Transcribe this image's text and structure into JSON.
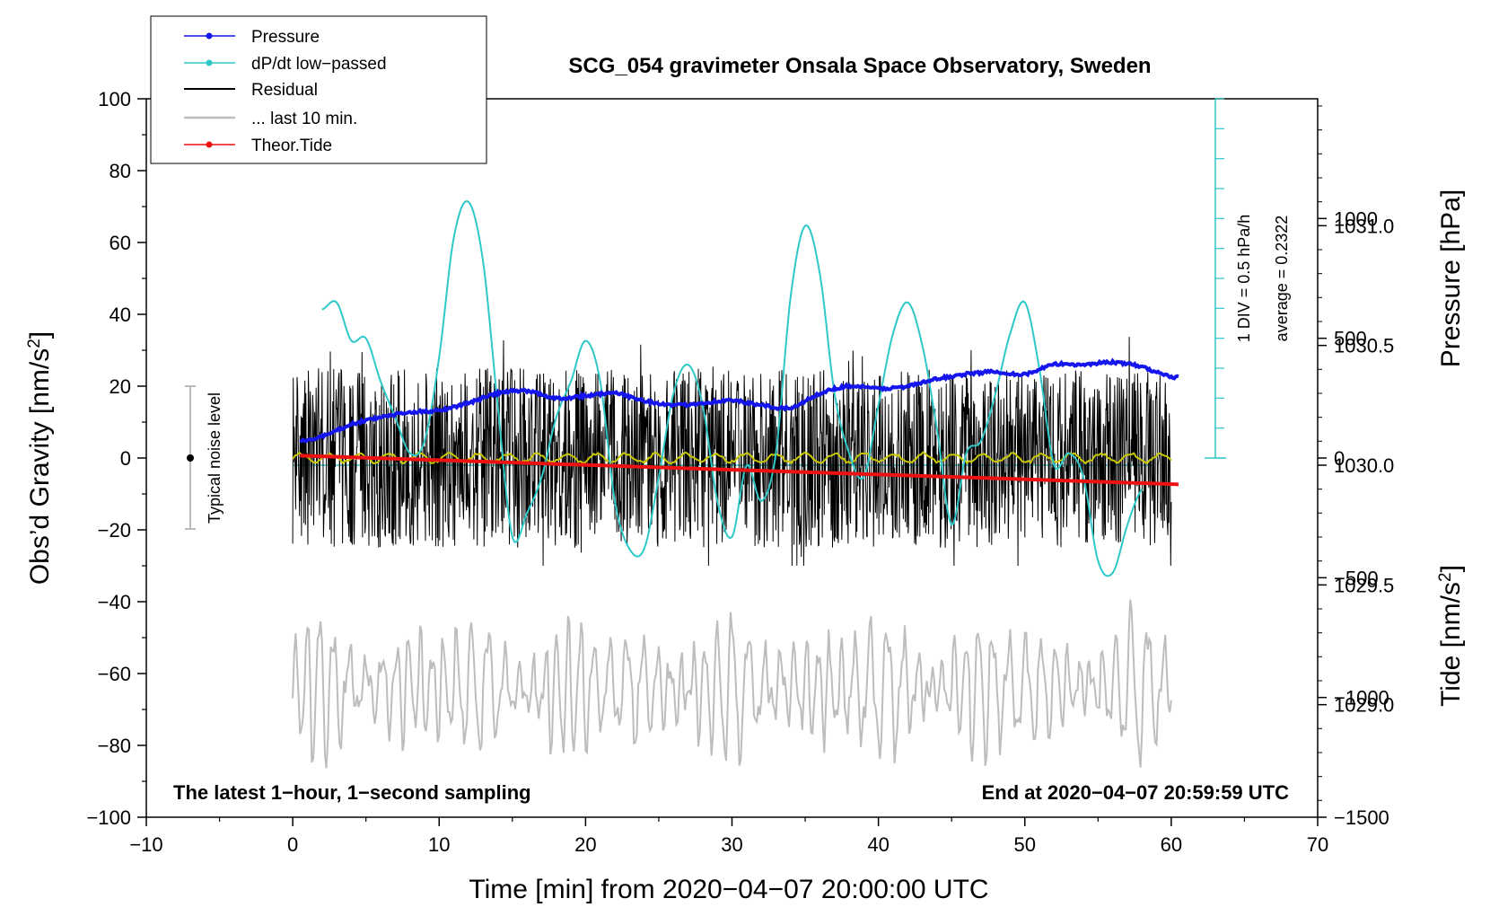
{
  "chart_data": {
    "type": "line",
    "title": "SCG_054 gravimeter Onsala Space Observatory, Sweden",
    "xlabel": "Time [min] from 2020−04−07 20:00:00 UTC",
    "ylabel_left_main": "Obs’d Gravity [nm/s",
    "ylabel_left_sup": "2",
    "ylabel_left_end": "]",
    "ylabel_right_pressure": "Pressure [hPa]",
    "ylabel_right_tide_main": "Tide [nm/s",
    "ylabel_right_tide_sup": "2",
    "ylabel_right_tide_end": "]",
    "xlim": [
      -10,
      70
    ],
    "ylim": [
      -100,
      100
    ],
    "pressure_lim": [
      1028.53,
      1031.53
    ],
    "tide_lim": [
      -1500,
      1500
    ],
    "x_ticks": [
      "−10",
      "0",
      "10",
      "20",
      "30",
      "40",
      "50",
      "60",
      "70"
    ],
    "x_tick_values": [
      -10,
      0,
      10,
      20,
      30,
      40,
      50,
      60,
      70
    ],
    "y_ticks": [
      "100",
      "80",
      "60",
      "40",
      "20",
      "0",
      "−20",
      "−40",
      "−60",
      "−80",
      "−100"
    ],
    "y_tick_values": [
      100,
      80,
      60,
      40,
      20,
      0,
      -20,
      -40,
      -60,
      -80,
      -100
    ],
    "pressure_ticks": [
      "1031.0",
      "1030.5",
      "1030.0",
      "1029.5",
      "1029.0"
    ],
    "pressure_tick_values": [
      1031.0,
      1030.5,
      1030.0,
      1029.5,
      1029.0
    ],
    "tide_ticks": [
      "1000",
      "500",
      "0",
      "−500",
      "−1000",
      "−1500"
    ],
    "tide_tick_values": [
      1000,
      500,
      0,
      -500,
      -1000,
      -1500
    ],
    "legend": {
      "position": "top-left",
      "entries": [
        {
          "label": "Pressure",
          "color": "#1515ee",
          "marker": true
        },
        {
          "label": "dP/dt low−passed",
          "color": "#2ec8c8",
          "marker": true
        },
        {
          "label": "Residual",
          "color": "#000000",
          "marker": false
        },
        {
          "label": "... last 10 min.",
          "color": "#bdbdbd",
          "marker": false
        },
        {
          "label": "Theor.Tide",
          "color": "#ee1111",
          "marker": true
        }
      ]
    },
    "annotations": {
      "left_note": "The latest 1−hour, 1−second sampling",
      "right_note": "End at 2020−04−07 20:59:59 UTC",
      "noise_label": "Typical noise level",
      "noise_range": [
        -20,
        20
      ],
      "div_label": "1 DIV = 0.5 hPa/h",
      "average_label": "average = 0.2322",
      "dpdt_baseline_pressure": 1030.0
    },
    "series": [
      {
        "name": "Pressure",
        "units": "hPa",
        "color": "#1515ee",
        "x": [
          0.5,
          2,
          4,
          6,
          8,
          10,
          12,
          14,
          16,
          18,
          20,
          22,
          24,
          26,
          28,
          30,
          32,
          34,
          36,
          38,
          40,
          42,
          44,
          46,
          48,
          50,
          52,
          54,
          56,
          58,
          60,
          60.5
        ],
        "values": [
          1030.1,
          1030.12,
          1030.17,
          1030.2,
          1030.22,
          1030.23,
          1030.26,
          1030.3,
          1030.31,
          1030.28,
          1030.29,
          1030.3,
          1030.27,
          1030.25,
          1030.26,
          1030.27,
          1030.25,
          1030.24,
          1030.3,
          1030.33,
          1030.32,
          1030.33,
          1030.36,
          1030.38,
          1030.39,
          1030.38,
          1030.42,
          1030.42,
          1030.43,
          1030.41,
          1030.37,
          1030.37
        ]
      },
      {
        "name": "dP/dt low−passed",
        "units": "hPa/h, 0.5 per DIV about baseline",
        "color": "#2ec8c8",
        "x": [
          2,
          3,
          4,
          5,
          6,
          7,
          8,
          9,
          10,
          11,
          12,
          13,
          14,
          15,
          16,
          17,
          18,
          19,
          20,
          21,
          22,
          23,
          24,
          25,
          26,
          27,
          28,
          29,
          30,
          31,
          32,
          33,
          34,
          35,
          36,
          37,
          38,
          39,
          40,
          41,
          42,
          43,
          44,
          45,
          46,
          47,
          48,
          49,
          50,
          51,
          52,
          53,
          54,
          55,
          56,
          57,
          58
        ],
        "values": [
          1030.65,
          1030.68,
          1030.52,
          1030.53,
          1030.35,
          1030.2,
          1030.05,
          1030.1,
          1030.45,
          1030.95,
          1031.1,
          1030.85,
          1030.25,
          1029.7,
          1029.8,
          1029.95,
          1030.2,
          1030.35,
          1030.52,
          1030.35,
          1029.85,
          1029.65,
          1029.65,
          1029.95,
          1030.3,
          1030.42,
          1030.25,
          1029.85,
          1029.7,
          1030.0,
          1029.85,
          1030.05,
          1030.7,
          1031.0,
          1030.8,
          1030.3,
          1030.05,
          1029.95,
          1030.25,
          1030.55,
          1030.68,
          1030.5,
          1030.15,
          1029.75,
          1030.05,
          1030.1,
          1030.3,
          1030.55,
          1030.68,
          1030.4,
          1030.0,
          1030.05,
          1029.95,
          1029.6,
          1029.55,
          1029.75,
          1029.9
        ]
      },
      {
        "name": "Residual",
        "units": "nm/s2",
        "color": "#000000",
        "x_range": [
          0,
          60
        ],
        "approx_amplitude": 25,
        "peak_max": 35,
        "peak_min": -30
      },
      {
        "name": "Residual smoothed",
        "units": "nm/s2",
        "color": "#c8c800",
        "x_range": [
          0,
          60
        ],
        "approx_level": 0
      },
      {
        "name": "... last 10 min.",
        "units": "nm/s2 (plotted in left axis units)",
        "color": "#bdbdbd",
        "x_range": [
          0,
          60
        ],
        "center": -64,
        "approx_amplitude": 14,
        "peak_max": -32,
        "peak_min": -92
      },
      {
        "name": "Theor.Tide",
        "units": "nm/s2",
        "color": "#ee1111",
        "x": [
          0.5,
          60.5
        ],
        "values": [
          10,
          -110
        ]
      }
    ]
  }
}
